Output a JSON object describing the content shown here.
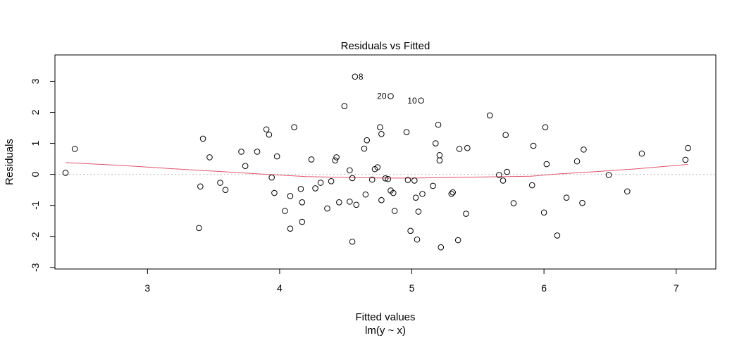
{
  "chart_data": {
    "type": "scatter",
    "title": "Residuals vs Fitted",
    "xlabel": "Fitted values",
    "sublabel": "lm(y ~ x)",
    "ylabel": "Residuals",
    "xlim": [
      2.3,
      7.3
    ],
    "ylim": [
      -3.05,
      3.85
    ],
    "xticks": [
      3,
      4,
      5,
      6,
      7
    ],
    "yticks": [
      -3,
      -2,
      -1,
      0,
      1,
      2,
      3
    ],
    "reference_line": 0,
    "colors": {
      "points": "#000000",
      "smooth": "#DF536B",
      "reference": "#BEBEBE"
    },
    "labeled_points": [
      {
        "label": "8",
        "x": 4.57,
        "y": 3.15
      },
      {
        "label": "20",
        "x": 4.84,
        "y": 2.52
      },
      {
        "label": "10",
        "x": 5.07,
        "y": 2.38
      }
    ],
    "points": [
      [
        2.38,
        0.05
      ],
      [
        2.45,
        0.82
      ],
      [
        3.39,
        -1.73
      ],
      [
        3.4,
        -0.39
      ],
      [
        3.42,
        1.15
      ],
      [
        3.47,
        0.55
      ],
      [
        3.55,
        -0.27
      ],
      [
        3.59,
        -0.5
      ],
      [
        3.71,
        0.73
      ],
      [
        3.74,
        0.27
      ],
      [
        3.83,
        0.73
      ],
      [
        3.9,
        1.45
      ],
      [
        3.92,
        1.28
      ],
      [
        3.94,
        -0.1
      ],
      [
        3.96,
        -0.6
      ],
      [
        3.98,
        0.58
      ],
      [
        4.04,
        -1.18
      ],
      [
        4.08,
        -0.7
      ],
      [
        4.08,
        -1.75
      ],
      [
        4.11,
        1.52
      ],
      [
        4.16,
        -0.47
      ],
      [
        4.17,
        -0.9
      ],
      [
        4.17,
        -1.53
      ],
      [
        4.24,
        0.48
      ],
      [
        4.27,
        -0.45
      ],
      [
        4.31,
        -0.27
      ],
      [
        4.36,
        -1.1
      ],
      [
        4.39,
        -0.22
      ],
      [
        4.42,
        0.45
      ],
      [
        4.43,
        0.55
      ],
      [
        4.45,
        -0.9
      ],
      [
        4.49,
        2.2
      ],
      [
        4.53,
        0.13
      ],
      [
        4.53,
        -0.88
      ],
      [
        4.55,
        -0.12
      ],
      [
        4.55,
        -2.17
      ],
      [
        4.57,
        3.15
      ],
      [
        4.58,
        -0.98
      ],
      [
        4.64,
        0.83
      ],
      [
        4.65,
        -0.65
      ],
      [
        4.66,
        1.1
      ],
      [
        4.7,
        -0.17
      ],
      [
        4.72,
        0.17
      ],
      [
        4.74,
        0.23
      ],
      [
        4.76,
        1.52
      ],
      [
        4.77,
        1.3
      ],
      [
        4.77,
        -0.83
      ],
      [
        4.8,
        -0.13
      ],
      [
        4.82,
        -0.15
      ],
      [
        4.84,
        2.52
      ],
      [
        4.84,
        -0.52
      ],
      [
        4.86,
        -0.6
      ],
      [
        4.87,
        -1.18
      ],
      [
        4.96,
        1.36
      ],
      [
        4.97,
        -0.18
      ],
      [
        4.99,
        -1.82
      ],
      [
        5.02,
        -0.2
      ],
      [
        5.03,
        -0.75
      ],
      [
        5.04,
        -2.1
      ],
      [
        5.05,
        -1.2
      ],
      [
        5.07,
        2.38
      ],
      [
        5.08,
        -0.63
      ],
      [
        5.16,
        -0.37
      ],
      [
        5.18,
        1.0
      ],
      [
        5.2,
        1.6
      ],
      [
        5.21,
        0.62
      ],
      [
        5.21,
        0.45
      ],
      [
        5.22,
        -2.35
      ],
      [
        5.3,
        -0.63
      ],
      [
        5.31,
        -0.58
      ],
      [
        5.35,
        -2.12
      ],
      [
        5.36,
        0.82
      ],
      [
        5.41,
        -1.27
      ],
      [
        5.42,
        0.85
      ],
      [
        5.59,
        1.9
      ],
      [
        5.66,
        -0.02
      ],
      [
        5.69,
        -0.2
      ],
      [
        5.71,
        1.27
      ],
      [
        5.72,
        0.08
      ],
      [
        5.77,
        -0.93
      ],
      [
        5.91,
        -0.35
      ],
      [
        5.92,
        0.92
      ],
      [
        6.0,
        -1.23
      ],
      [
        6.01,
        1.52
      ],
      [
        6.02,
        0.33
      ],
      [
        6.1,
        -1.97
      ],
      [
        6.17,
        -0.75
      ],
      [
        6.25,
        0.42
      ],
      [
        6.29,
        -0.92
      ],
      [
        6.3,
        0.8
      ],
      [
        6.49,
        -0.02
      ],
      [
        6.63,
        -0.55
      ],
      [
        6.74,
        0.67
      ],
      [
        7.07,
        0.47
      ],
      [
        7.09,
        0.85
      ]
    ],
    "smooth_curve": [
      [
        2.38,
        0.38
      ],
      [
        2.8,
        0.29
      ],
      [
        3.2,
        0.18
      ],
      [
        3.6,
        0.08
      ],
      [
        3.9,
        0.0
      ],
      [
        4.2,
        -0.07
      ],
      [
        4.5,
        -0.1
      ],
      [
        4.8,
        -0.12
      ],
      [
        5.0,
        -0.12
      ],
      [
        5.3,
        -0.1
      ],
      [
        5.6,
        -0.08
      ],
      [
        5.9,
        -0.06
      ],
      [
        6.1,
        0.01
      ],
      [
        6.4,
        0.09
      ],
      [
        6.7,
        0.18
      ],
      [
        7.09,
        0.32
      ]
    ]
  }
}
